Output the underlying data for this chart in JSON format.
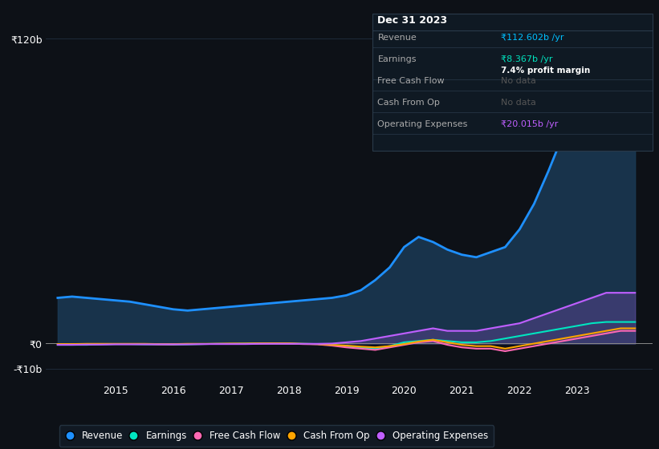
{
  "background_color": "#0d1117",
  "plot_bg_color": "#0d1117",
  "grid_color": "#1e2a3a",
  "title_box": {
    "date": "Dec 31 2023",
    "rows": [
      {
        "label": "Revenue",
        "value": "₹112.602b /yr",
        "value_color": "#00bfff",
        "sub": null
      },
      {
        "label": "Earnings",
        "value": "₹8.367b /yr",
        "value_color": "#00e5c0",
        "sub": "7.4% profit margin",
        "sub_color": "#ffffff"
      },
      {
        "label": "Free Cash Flow",
        "value": "No data",
        "value_color": "#555555",
        "sub": null
      },
      {
        "label": "Cash From Op",
        "value": "No data",
        "value_color": "#555555",
        "sub": null
      },
      {
        "label": "Operating Expenses",
        "value": "₹20.015b /yr",
        "value_color": "#bf5fff",
        "sub": null
      }
    ]
  },
  "years": [
    2014.0,
    2014.25,
    2014.5,
    2014.75,
    2015.0,
    2015.25,
    2015.5,
    2015.75,
    2016.0,
    2016.25,
    2016.5,
    2016.75,
    2017.0,
    2017.25,
    2017.5,
    2017.75,
    2018.0,
    2018.25,
    2018.5,
    2018.75,
    2019.0,
    2019.25,
    2019.5,
    2019.75,
    2020.0,
    2020.25,
    2020.5,
    2020.75,
    2021.0,
    2021.25,
    2021.5,
    2021.75,
    2022.0,
    2022.25,
    2022.5,
    2022.75,
    2023.0,
    2023.25,
    2023.5,
    2023.75,
    2024.0
  ],
  "revenue": [
    18,
    18.5,
    18,
    17.5,
    17,
    16.5,
    15.5,
    14.5,
    13.5,
    13,
    13.5,
    14,
    14.5,
    15,
    15.5,
    16,
    16.5,
    17,
    17.5,
    18,
    19,
    21,
    25,
    30,
    38,
    42,
    40,
    37,
    35,
    34,
    36,
    38,
    45,
    55,
    68,
    82,
    95,
    105,
    110,
    113,
    113
  ],
  "earnings": [
    -0.5,
    -0.5,
    -0.5,
    -0.3,
    -0.2,
    -0.2,
    -0.3,
    -0.3,
    -0.4,
    -0.3,
    -0.2,
    -0.1,
    -0.1,
    0,
    0.1,
    0.1,
    0,
    -0.1,
    -0.2,
    -0.5,
    -1,
    -1.5,
    -2,
    -1,
    0.5,
    1,
    1.5,
    1,
    0.5,
    0.5,
    1,
    2,
    3,
    4,
    5,
    6,
    7,
    8,
    8.5,
    8.5,
    8.5
  ],
  "free_cash_flow": [
    -0.3,
    -0.3,
    -0.2,
    -0.2,
    -0.2,
    -0.2,
    -0.2,
    -0.3,
    -0.3,
    -0.2,
    -0.2,
    -0.1,
    -0.1,
    -0.1,
    0,
    0.1,
    0,
    -0.2,
    -0.3,
    -0.8,
    -1.5,
    -2,
    -2.5,
    -1.5,
    -0.5,
    0.5,
    1,
    -0.5,
    -1.5,
    -2,
    -2,
    -3,
    -2,
    -1,
    0,
    1,
    2,
    3,
    4,
    5,
    5
  ],
  "cash_from_op": [
    -0.2,
    -0.2,
    -0.1,
    -0.1,
    -0.1,
    -0.1,
    -0.1,
    -0.2,
    -0.2,
    -0.1,
    -0.1,
    -0.1,
    0,
    0,
    0.1,
    0.1,
    0.1,
    -0.1,
    -0.2,
    -0.5,
    -0.8,
    -1.2,
    -1.5,
    -1.0,
    -0.2,
    0.8,
    1.5,
    0.5,
    -0.5,
    -1,
    -1,
    -2,
    -1,
    0,
    1,
    2,
    3,
    4,
    5,
    6,
    6
  ],
  "operating_expenses": [
    -0.5,
    -0.5,
    -0.4,
    -0.4,
    -0.3,
    -0.3,
    -0.3,
    -0.3,
    -0.3,
    -0.3,
    -0.2,
    -0.2,
    -0.2,
    -0.2,
    -0.1,
    -0.1,
    -0.1,
    -0.1,
    -0.1,
    0,
    0.5,
    1,
    2,
    3,
    4,
    5,
    6,
    5,
    5,
    5,
    6,
    7,
    8,
    10,
    12,
    14,
    16,
    18,
    20,
    20,
    20
  ],
  "revenue_color": "#1e90ff",
  "revenue_fill": "#1a3a55",
  "earnings_color": "#00e5c0",
  "free_cash_flow_color": "#ff69b4",
  "cash_from_op_color": "#ffa500",
  "operating_expenses_color": "#bf5fff",
  "ylim": [
    -15,
    130
  ],
  "yticks": [
    -10,
    0,
    120
  ],
  "ytick_labels": [
    "-₹10b",
    "₹0",
    "₹120b"
  ],
  "xticks": [
    2015,
    2016,
    2017,
    2018,
    2019,
    2020,
    2021,
    2022,
    2023
  ],
  "legend_items": [
    {
      "label": "Revenue",
      "color": "#1e90ff"
    },
    {
      "label": "Earnings",
      "color": "#00e5c0"
    },
    {
      "label": "Free Cash Flow",
      "color": "#ff69b4"
    },
    {
      "label": "Cash From Op",
      "color": "#ffa500"
    },
    {
      "label": "Operating Expenses",
      "color": "#bf5fff"
    }
  ],
  "box_bg": "#0f1923",
  "box_border": "#2a3a4a"
}
